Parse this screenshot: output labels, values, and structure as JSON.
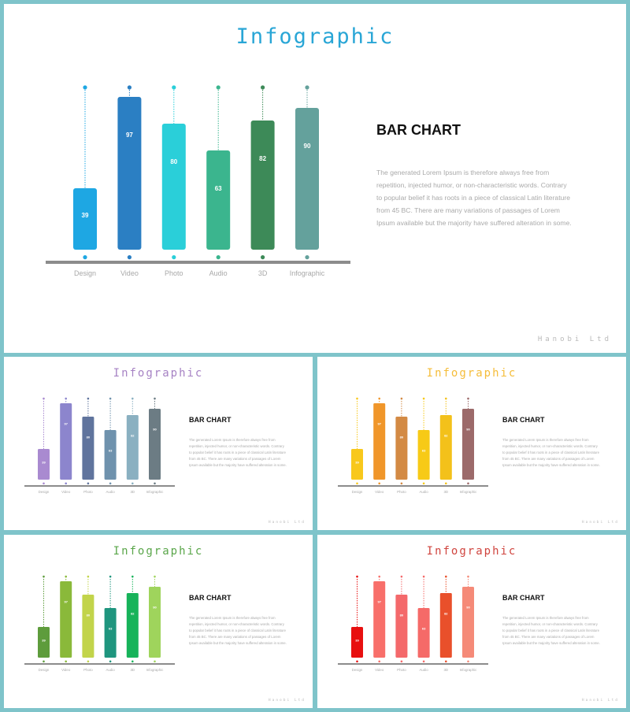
{
  "slides": [
    {
      "title": "Infographic",
      "heading": "BAR CHART",
      "paragraph": "The generated Lorem Ipsum is therefore always free from repetition, injected humor, or non-characteristic words. Contrary to popular belief it has roots in a piece of classical Latin literature from 45 BC. There are many variations of passages of Lorem Ipsum available but the majority have suffered alteration in some.",
      "brand": "Hanobi Ltd",
      "colors": {
        "title": "#29a6d6",
        "bars": [
          "#1ea7e3",
          "#2b7fc3",
          "#2acfd9",
          "#3bb58e",
          "#3d8a58",
          "#64a19c"
        ]
      }
    },
    {
      "title": "Infographic",
      "heading": "BAR CHART",
      "paragraph": "The generated Lorem Ipsum is therefore always free from repetition, injected humor, or non-characteristic words. Contrary to popular belief it has roots in a piece of classical Latin literature from 45 BC. There are many variations of passages of Lorem Ipsum available but the majority have suffered alteration in some.",
      "brand": "Hanobi Ltd",
      "colors": {
        "title": "#a682c4",
        "bars": [
          "#a98ad0",
          "#8c85cd",
          "#60749d",
          "#6f92ad",
          "#8ab0c1",
          "#6c7c84"
        ]
      }
    },
    {
      "title": "Infographic",
      "heading": "BAR CHART",
      "paragraph": "The generated Lorem Ipsum is therefore always free from repetition, injected humor, or non-characteristic words. Contrary to popular belief it has roots in a piece of classical Latin literature from 45 BC. There are many variations of passages of Lorem Ipsum available but the majority have suffered alteration in some.",
      "brand": "Hanobi Ltd",
      "colors": {
        "title": "#f5bd3a",
        "bars": [
          "#f8c81c",
          "#f0962a",
          "#d38a44",
          "#f7ca17",
          "#f3c11a",
          "#9c6a6a"
        ]
      }
    },
    {
      "title": "Infographic",
      "heading": "BAR CHART",
      "paragraph": "The generated Lorem Ipsum is therefore always free from repetition, injected humor, or non-characteristic words. Contrary to popular belief it has roots in a piece of classical Latin literature from 45 BC. There are many variations of passages of Lorem Ipsum available but the majority have suffered alteration in some.",
      "brand": "Hanobi Ltd",
      "colors": {
        "title": "#5aa64a",
        "bars": [
          "#5e9c3c",
          "#8ab93a",
          "#c2d44a",
          "#1f957e",
          "#17b35a",
          "#9fd45c"
        ]
      }
    },
    {
      "title": "Infographic",
      "heading": "BAR CHART",
      "paragraph": "The generated Lorem Ipsum is therefore always free from repetition, injected humor, or non-characteristic words. Contrary to popular belief it has roots in a piece of classical Latin literature from 45 BC. There are many variations of passages of Lorem Ipsum available but the majority have suffered alteration in some.",
      "brand": "Hanobi Ltd",
      "colors": {
        "title": "#d0453f",
        "bars": [
          "#e81010",
          "#f86f6a",
          "#f4696b",
          "#f56a68",
          "#e9502b",
          "#f58a78"
        ]
      }
    }
  ],
  "chart_data": [
    {
      "type": "bar",
      "categories": [
        "Design",
        "Video",
        "Photo",
        "Audio",
        "3D",
        "Infographic"
      ],
      "values": [
        39,
        97,
        80,
        63,
        82,
        90
      ],
      "ylim": [
        0,
        100
      ],
      "grid": false,
      "legend": "none"
    },
    {
      "type": "bar",
      "categories": [
        "Design",
        "Video",
        "Photo",
        "Audio",
        "3D",
        "Infographic"
      ],
      "values": [
        39,
        97,
        80,
        63,
        82,
        90
      ],
      "ylim": [
        0,
        100
      ],
      "grid": false,
      "legend": "none"
    },
    {
      "type": "bar",
      "categories": [
        "Design",
        "Video",
        "Photo",
        "Audio",
        "3D",
        "Infographic"
      ],
      "values": [
        39,
        97,
        80,
        63,
        82,
        90
      ],
      "ylim": [
        0,
        100
      ],
      "grid": false,
      "legend": "none"
    },
    {
      "type": "bar",
      "categories": [
        "Design",
        "Video",
        "Photo",
        "Audio",
        "3D",
        "Infographic"
      ],
      "values": [
        39,
        97,
        80,
        63,
        82,
        90
      ],
      "ylim": [
        0,
        100
      ],
      "grid": false,
      "legend": "none"
    },
    {
      "type": "bar",
      "categories": [
        "Design",
        "Video",
        "Photo",
        "Audio",
        "3D",
        "Infographic"
      ],
      "values": [
        39,
        97,
        80,
        63,
        82,
        90
      ],
      "ylim": [
        0,
        100
      ],
      "grid": false,
      "legend": "none"
    }
  ]
}
